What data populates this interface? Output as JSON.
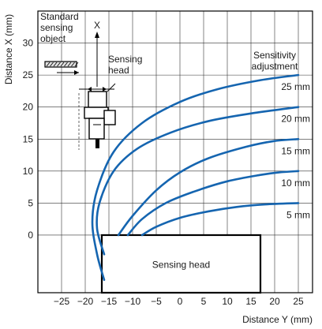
{
  "chart_data": {
    "type": "line",
    "title": "",
    "xlabel": "Distance Y (mm)",
    "ylabel": "Distance X (mm)",
    "xlim": [
      -30,
      28
    ],
    "ylim": [
      -9,
      35
    ],
    "xticks": [
      -25,
      -20,
      -15,
      -10,
      -5,
      0,
      5,
      10,
      15,
      20,
      25
    ],
    "yticks": [
      0,
      5,
      10,
      15,
      20,
      25,
      30
    ],
    "grid": true,
    "legend_title": [
      "Sensitivity",
      "adjustment"
    ],
    "series": [
      {
        "name": "25 mm",
        "color": "#1565b0",
        "x": [
          -16,
          -17.5,
          -18.5,
          -17.5,
          -14,
          -8,
          0,
          8,
          17,
          25
        ],
        "y": [
          -7,
          -3,
          2,
          7,
          13,
          17.5,
          20.8,
          22.8,
          24.2,
          25
        ]
      },
      {
        "name": "20 mm",
        "color": "#1565b0",
        "x": [
          -16,
          -17.5,
          -17,
          -14,
          -9,
          -2,
          6,
          15,
          25
        ],
        "y": [
          -3,
          1,
          5,
          10,
          13.5,
          16,
          17.8,
          19,
          20
        ]
      },
      {
        "name": "15 mm",
        "color": "#1565b0",
        "x": [
          -13,
          -10,
          -5,
          0,
          6,
          14,
          20,
          25
        ],
        "y": [
          0,
          3,
          7,
          9.8,
          12,
          13.8,
          14.7,
          15
        ]
      },
      {
        "name": "10 mm",
        "color": "#1565b0",
        "x": [
          -11,
          -8,
          -3,
          3,
          10,
          17,
          21,
          25
        ],
        "y": [
          0,
          2.5,
          5,
          6.8,
          8.4,
          9.4,
          9.8,
          10
        ]
      },
      {
        "name": "5 mm",
        "color": "#1565b0",
        "x": [
          -8,
          -5,
          0,
          6,
          12,
          18,
          25
        ],
        "y": [
          0,
          1.3,
          2.7,
          3.7,
          4.4,
          4.8,
          5
        ]
      }
    ],
    "annotations": {
      "standard_object": [
        "Standard",
        "sensing",
        "object"
      ],
      "x_axis_marker": "X",
      "sensing_head_top": [
        "Sensing",
        "head"
      ],
      "sensing_head_box": "Sensing head"
    },
    "sensing_head_box_x": [
      -16.5,
      17
    ],
    "sensing_head_box_y": [
      -9,
      0
    ]
  }
}
